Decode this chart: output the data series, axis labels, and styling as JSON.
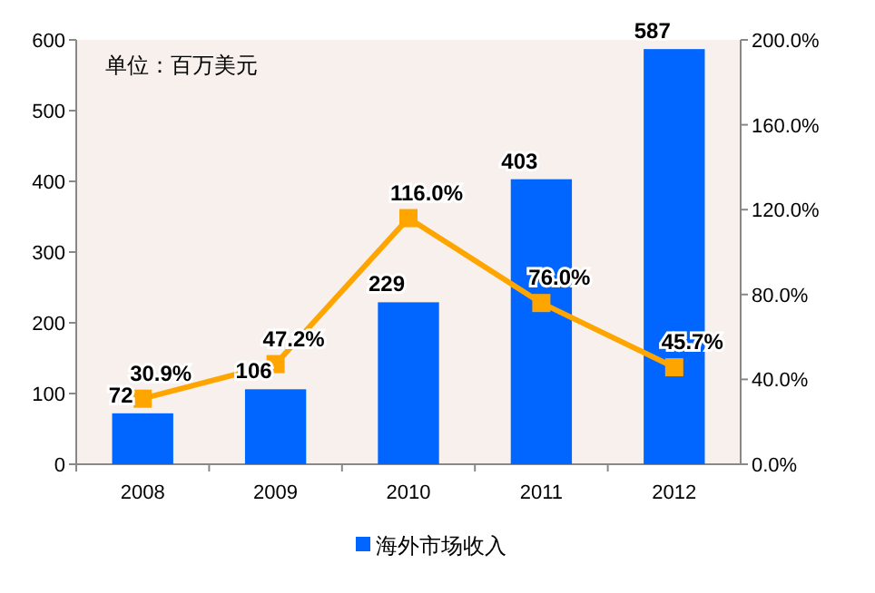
{
  "chart_data": {
    "type": "bar",
    "categories": [
      "2008",
      "2009",
      "2010",
      "2011",
      "2012"
    ],
    "series": [
      {
        "name": "海外市场收入",
        "color": "#0066ff",
        "values": [
          72,
          106,
          229,
          403,
          587
        ]
      },
      {
        "type": "line",
        "axis": "y2",
        "color": "#ffa500",
        "marker": "square",
        "values": [
          30.9,
          47.2,
          116.0,
          76.0,
          45.7
        ],
        "value_labels": [
          "30.9%",
          "47.2%",
          "116.0%",
          "76.0%",
          "45.7%"
        ]
      }
    ],
    "ylim": [
      0,
      600
    ],
    "yticks": [
      0,
      100,
      200,
      300,
      400,
      500,
      600
    ],
    "y2lim": [
      0,
      200
    ],
    "y2ticks": [
      {
        "value": 0,
        "label": "0.0%"
      },
      {
        "value": 40,
        "label": "40.0%"
      },
      {
        "value": 80,
        "label": "80.0%"
      },
      {
        "value": 120,
        "label": "120.0%"
      },
      {
        "value": 160,
        "label": "160.0%"
      },
      {
        "value": 200,
        "label": "200.0%"
      }
    ],
    "data_labels": true,
    "annotations": [
      "单位：百万美元"
    ],
    "legend": "bottom"
  }
}
